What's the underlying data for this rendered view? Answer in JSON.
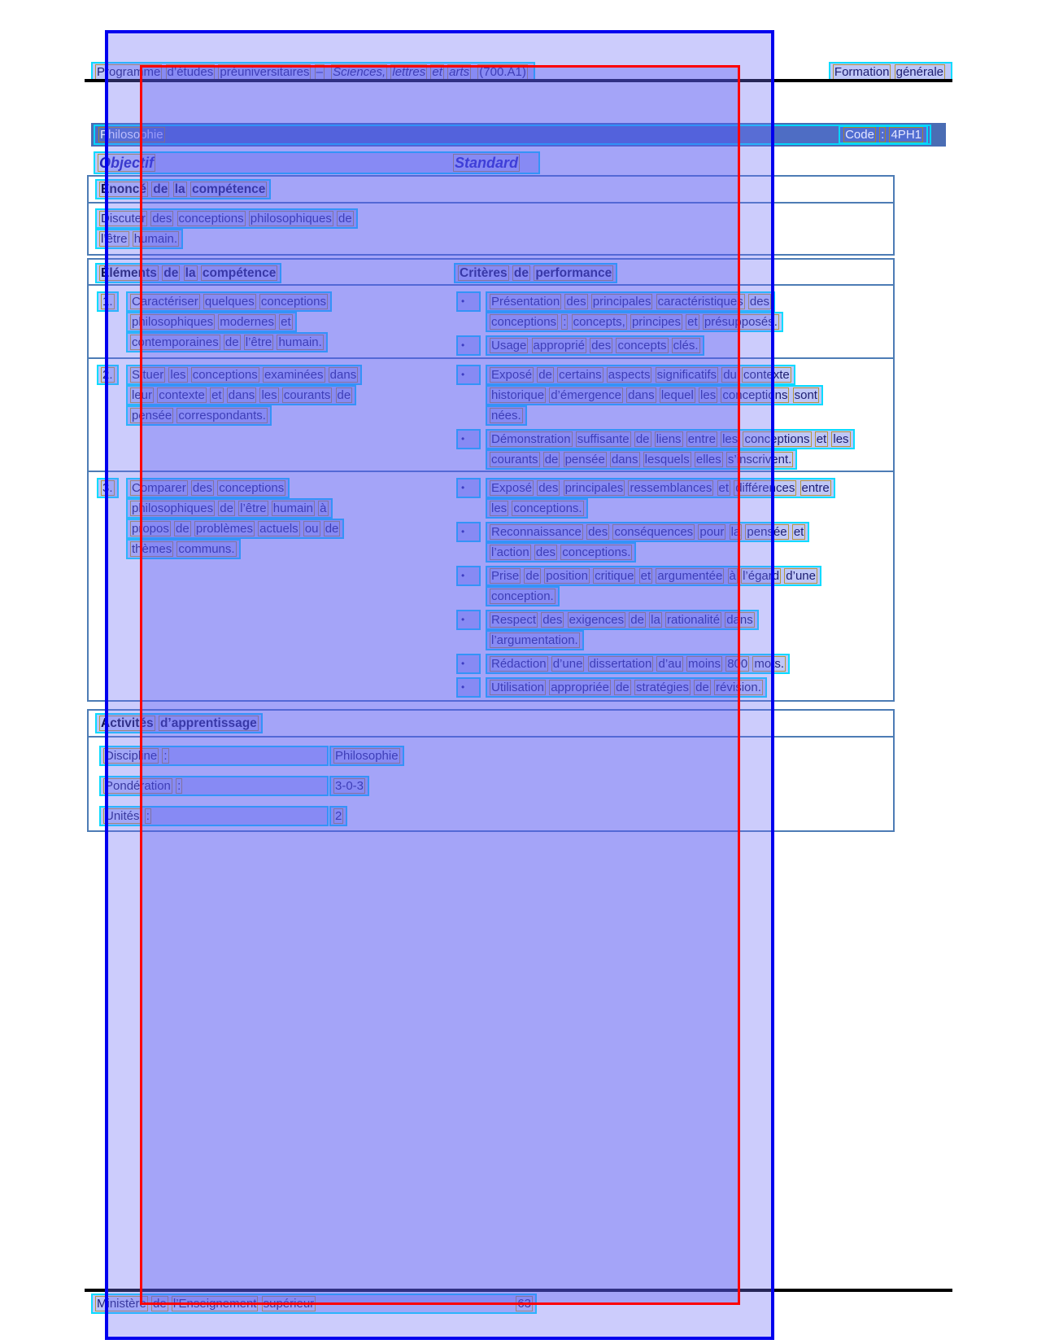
{
  "header": {
    "left_regular": "Programme d’études préuniversitaires –",
    "left_italic": "Sciences, lettres et arts",
    "left_suffix": "(700.A1)",
    "right": "Formation générale"
  },
  "title_bar": {
    "course": "Philosophie",
    "code": "Code : 4PH1"
  },
  "objectif_label": "Objectif",
  "standard_label": "Standard",
  "enonce": {
    "title": "Énoncé de la compétence",
    "line1": "Discuter des conceptions philosophiques de",
    "line2": "l’être humain."
  },
  "table": {
    "left_header": "Éléments de la compétence",
    "right_header": "Critères de performance",
    "bullet_glyph": "•",
    "rows": [
      {
        "num": "1.",
        "left": [
          "Caractériser quelques conceptions",
          "philosophiques modernes et",
          "contemporaines de l’être humain."
        ],
        "bullets": [
          [
            "Présentation des principales caractéristiques des",
            "conceptions : concepts, principes et présupposés."
          ],
          [
            "Usage approprié des concepts clés."
          ]
        ]
      },
      {
        "num": "2.",
        "left": [
          "Situer les conceptions examinées dans",
          "leur contexte et dans les courants de",
          "pensée correspondants."
        ],
        "bullets": [
          [
            "Exposé de certains aspects significatifs du contexte",
            "historique d’émergence dans lequel les conceptions sont",
            "nées."
          ],
          [
            "Démonstration suffisante de liens entre les conceptions et les",
            "courants de pensée dans lesquels elles s’inscrivent."
          ]
        ]
      },
      {
        "num": "3.",
        "left": [
          "Comparer des conceptions",
          "philosophiques de l’être humain à",
          "propos de problèmes actuels ou de",
          "thèmes communs."
        ],
        "bullets": [
          [
            "Exposé des principales ressemblances et différences entre",
            "les conceptions."
          ],
          [
            "Reconnaissance des conséquences pour la pensée et",
            "l’action des conceptions."
          ],
          [
            "Prise de position critique et argumentée à l’égard d’une",
            "conception."
          ],
          [
            "Respect des exigences de la rationalité dans",
            "l’argumentation."
          ],
          [
            "Rédaction d’une dissertation d’au moins 800 mots."
          ],
          [
            "Utilisation appropriée de stratégies de révision."
          ]
        ]
      }
    ]
  },
  "activites": {
    "title": "Activités d’apprentissage",
    "rows": [
      {
        "label": "Discipline :",
        "value": "Philosophie"
      },
      {
        "label": "Pondération :",
        "value": "3-0-3"
      },
      {
        "label": "Unités :",
        "value": "2"
      }
    ]
  },
  "footer": {
    "left": "Ministère de l’Enseignement supérieur",
    "page_number": "63"
  },
  "colors": {
    "overlay_outer_border": "#0000ee",
    "overlay_inner_border": "#ff0000",
    "line_box_border": "#00dcff",
    "word_box_border": "#b08a10",
    "table_border": "#4d7cb5",
    "title_bar_bg": "#4a6db4"
  }
}
